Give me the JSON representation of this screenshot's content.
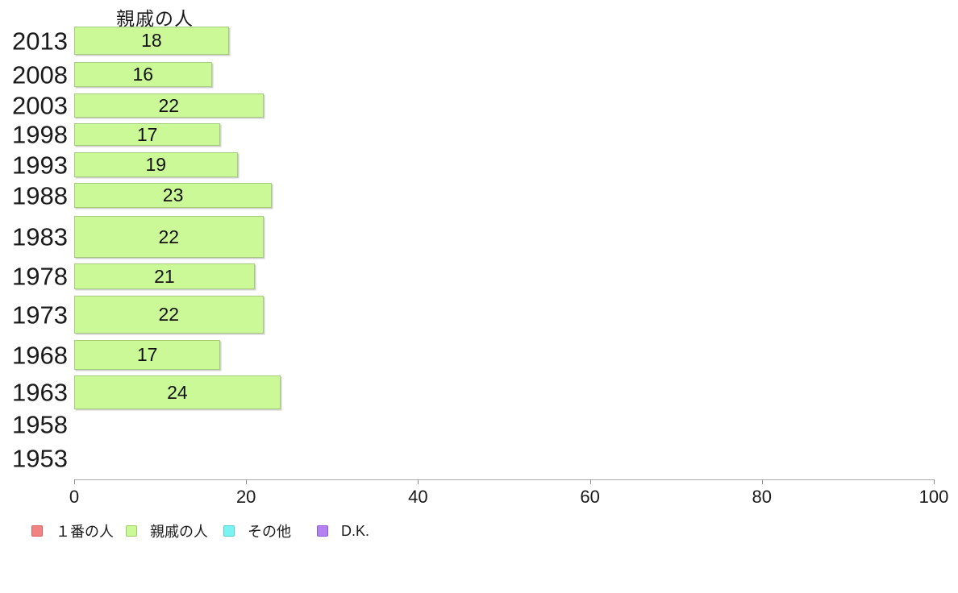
{
  "chart_data": {
    "type": "bar",
    "orientation": "horizontal",
    "title": "親戚の人",
    "categories": [
      "2013",
      "2008",
      "2003",
      "1998",
      "1993",
      "1988",
      "1983",
      "1978",
      "1973",
      "1968",
      "1963",
      "1958",
      "1953"
    ],
    "series": [
      {
        "name": "１番の人",
        "color": "#f28383",
        "border_color": "#d65f5f",
        "values": []
      },
      {
        "name": "親戚の人",
        "color": "#ccf998",
        "border_color": "#a6cb7d",
        "values": [
          18,
          16,
          22,
          17,
          19,
          23,
          22,
          21,
          22,
          17,
          24,
          null,
          null
        ]
      },
      {
        "name": "その他",
        "color": "#7df2f2",
        "border_color": "#54cfd4",
        "values": []
      },
      {
        "name": "D.K.",
        "color": "#b283f0",
        "border_color": "#8f5cd6",
        "values": []
      }
    ],
    "xlabel": "",
    "ylabel": "",
    "xlim": [
      0,
      100
    ],
    "x_ticks": [
      "0",
      "20",
      "40",
      "60",
      "80",
      "100"
    ],
    "grid": false,
    "value_labels": "inside-center",
    "legend_position": "bottom-left"
  },
  "legend": {
    "items": [
      {
        "label": "１番の人",
        "color": "#f28383",
        "border": "#d65f5f"
      },
      {
        "label": "親戚の人",
        "color": "#ccf998",
        "border": "#9ecb66"
      },
      {
        "label": "その他",
        "color": "#7df2f2",
        "border": "#54cfd4"
      },
      {
        "label": "D.K.",
        "color": "#b283f0",
        "border": "#8f5cd6"
      }
    ]
  }
}
